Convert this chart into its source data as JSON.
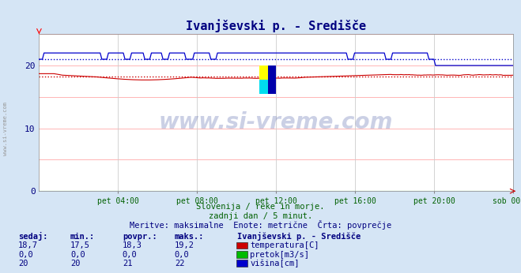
{
  "title": "Ivanjševski p. - Središče",
  "bg_color": "#d5e5f5",
  "plot_bg_color": "#ffffff",
  "title_color": "#000080",
  "x_ticks": [
    "pet 04:00",
    "pet 08:00",
    "pet 12:00",
    "pet 16:00",
    "pet 20:00",
    "sob 00:00"
  ],
  "x_tick_frac": [
    0.1667,
    0.3333,
    0.5,
    0.6667,
    0.8333,
    1.0
  ],
  "ylim": [
    0,
    25
  ],
  "yticks": [
    0,
    10,
    20
  ],
  "temp_avg": 18.3,
  "visina_avg": 21.0,
  "subtitle1": "Slovenija / reke in morje.",
  "subtitle2": "zadnji dan / 5 minut.",
  "subtitle3": "Meritve: maksimalne  Enote: metrične  Črta: povprečje",
  "col_headers": [
    "sedaj:",
    "min.:",
    "povpr.:",
    "maks.:"
  ],
  "station_name": "Ivanjševski p. - Središče",
  "row1_vals": [
    "18,7",
    "17,5",
    "18,3",
    "19,2"
  ],
  "row1_label": "temperatura[C]",
  "row2_vals": [
    "0,0",
    "0,0",
    "0,0",
    "0,0"
  ],
  "row2_label": "pretok[m3/s]",
  "row3_vals": [
    "20",
    "20",
    "21",
    "22"
  ],
  "row3_label": "višina[cm]",
  "legend_colors": [
    "#cc0000",
    "#00bb00",
    "#0000cc"
  ],
  "watermark": "www.si-vreme.com",
  "temp_color": "#cc0000",
  "flow_color": "#00bb00",
  "level_color": "#0000cc"
}
